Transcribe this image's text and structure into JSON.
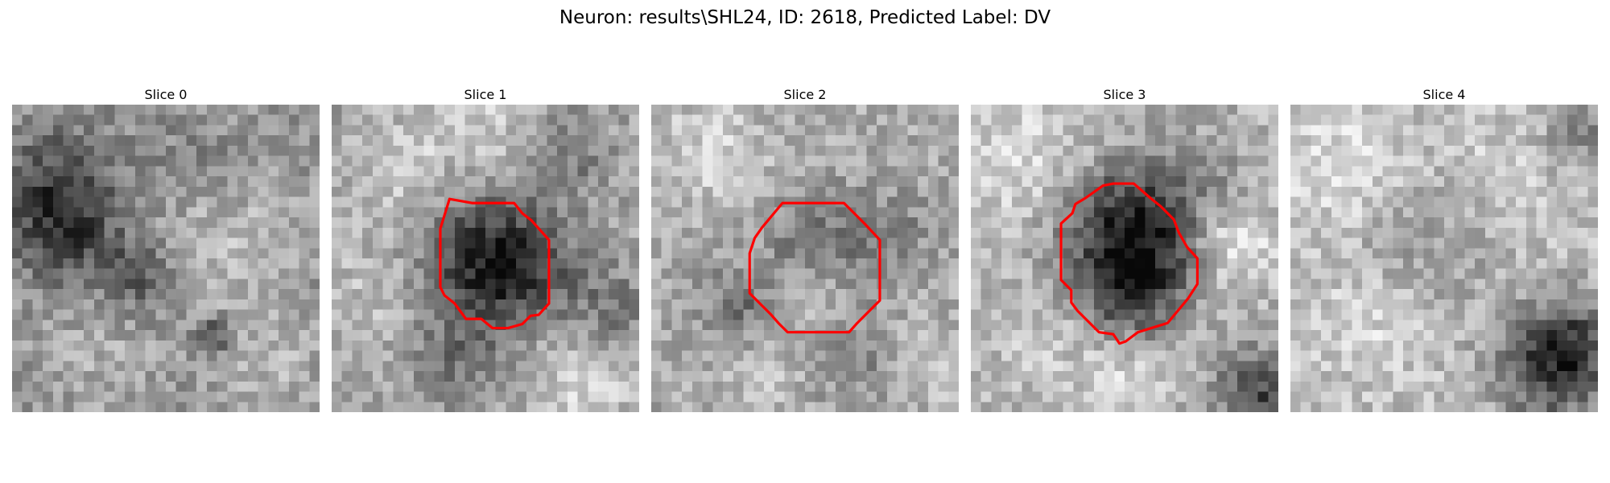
{
  "figure": {
    "title": "Neuron: results\\SHL24, ID: 2618, Predicted Label: DV"
  },
  "slices": [
    {
      "title": "Slice 0",
      "has_contour": false
    },
    {
      "title": "Slice 1",
      "has_contour": true
    },
    {
      "title": "Slice 2",
      "has_contour": true
    },
    {
      "title": "Slice 3",
      "has_contour": true
    },
    {
      "title": "Slice 4",
      "has_contour": false
    }
  ],
  "colors": {
    "contour": "#ff0000",
    "colormap": "grayscale"
  }
}
